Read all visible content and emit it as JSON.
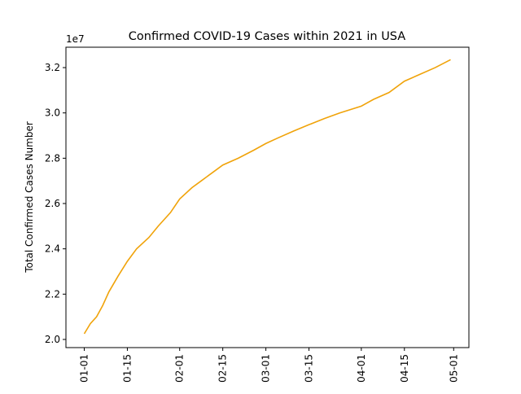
{
  "chart_data": {
    "type": "line",
    "title": "Confirmed COVID-19 Cases within 2021 in USA",
    "y_label": "Total Confirmed Cases Number",
    "y_offset_label": "1e7",
    "x": [
      "01-01",
      "01-03",
      "01-05",
      "01-07",
      "01-09",
      "01-12",
      "01-15",
      "01-18",
      "01-22",
      "01-25",
      "01-29",
      "02-01",
      "02-05",
      "02-08",
      "02-12",
      "02-15",
      "02-20",
      "02-25",
      "03-01",
      "03-05",
      "03-10",
      "03-15",
      "03-20",
      "03-25",
      "04-01",
      "04-05",
      "04-10",
      "04-15",
      "04-20",
      "04-25",
      "04-30"
    ],
    "series": [
      {
        "name": "Total Confirmed Cases",
        "color": "#f0a30a",
        "values": [
          2.025,
          2.07,
          2.1,
          2.15,
          2.21,
          2.28,
          2.345,
          2.4,
          2.45,
          2.5,
          2.56,
          2.62,
          2.67,
          2.7,
          2.74,
          2.77,
          2.8,
          2.835,
          2.865,
          2.89,
          2.92,
          2.948,
          2.975,
          3.0,
          3.03,
          3.06,
          3.09,
          3.14,
          3.17,
          3.2,
          3.235
        ]
      }
    ],
    "xticks": [
      "01-01",
      "01-15",
      "02-01",
      "02-15",
      "03-01",
      "03-15",
      "04-01",
      "04-15",
      "05-01"
    ],
    "ylim": [
      1.964,
      3.29
    ],
    "yticks": [
      {
        "value": 2,
        "label": "2.0"
      },
      2.2,
      2.4,
      2.6,
      2.8,
      {
        "value": 3,
        "label": "3.0"
      },
      3.2
    ]
  }
}
